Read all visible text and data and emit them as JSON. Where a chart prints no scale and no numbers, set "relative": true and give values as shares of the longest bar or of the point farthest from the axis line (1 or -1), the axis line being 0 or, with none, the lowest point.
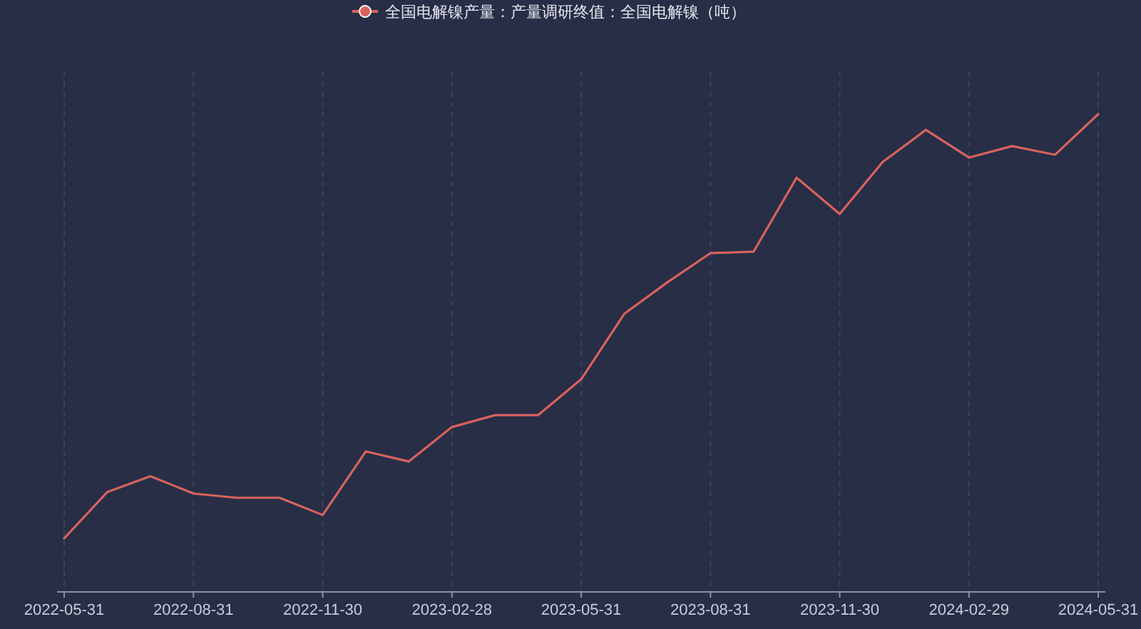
{
  "chart_data": {
    "type": "line",
    "relative": true,
    "legend": "top",
    "grid": "x",
    "categories": [
      "2022-05-31",
      null,
      null,
      "2022-08-31",
      null,
      null,
      "2022-11-30",
      null,
      null,
      "2023-02-28",
      null,
      null,
      "2023-05-31",
      null,
      null,
      "2023-08-31",
      null,
      null,
      "2023-11-30",
      null,
      null,
      "2024-02-29",
      null,
      null,
      "2024-05-31"
    ],
    "series": [
      {
        "name": "全国电解镍产量：产量调研终值：全国电解镍（吨）",
        "color": "#d9625c",
        "values": [
          0.112,
          0.209,
          0.242,
          0.206,
          0.197,
          0.197,
          0.161,
          0.294,
          0.273,
          0.345,
          0.37,
          0.37,
          0.445,
          0.582,
          0.648,
          0.709,
          0.712,
          0.867,
          0.791,
          0.9,
          0.967,
          0.909,
          0.933,
          0.915,
          1
        ]
      }
    ]
  }
}
